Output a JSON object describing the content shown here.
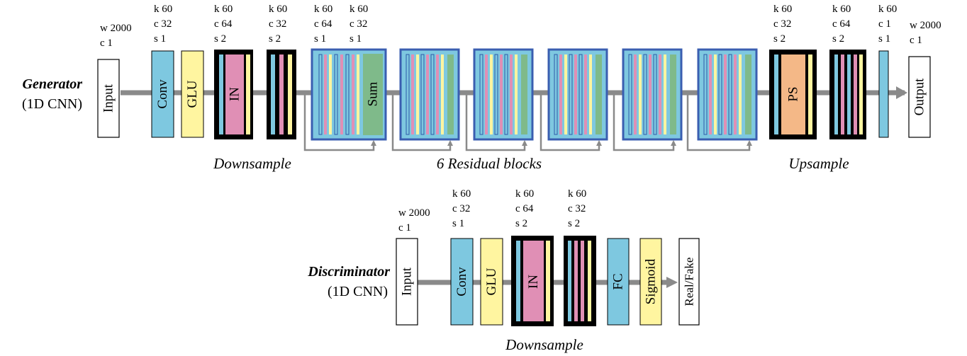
{
  "colors": {
    "conv": "#7ec8e0",
    "glu": "#fff5a0",
    "in": "#e08fb5",
    "sum": "#7fba8a",
    "ps": "#f4b887",
    "residual_border": "#3a5eb0",
    "arrow": "#8a8a8a"
  },
  "generator": {
    "title": "Generator",
    "subtitle": "(1D CNN)",
    "blocks": {
      "input": "Input",
      "conv": "Conv",
      "glu": "GLU",
      "in": "IN",
      "sum": "Sum",
      "ps": "PS",
      "output": "Output"
    },
    "params": {
      "input": [
        "w 2000",
        "c  1"
      ],
      "conv": [
        "k 60",
        "c  32",
        "s  1"
      ],
      "down1": [
        "k 60",
        "c  64",
        "s  2"
      ],
      "down2": [
        "k 60",
        "c  32",
        "s  2"
      ],
      "res_a": [
        "k 60",
        "c  64",
        "s  1"
      ],
      "res_b": [
        "k 60",
        "c  32",
        "s  1"
      ],
      "up1": [
        "k 60",
        "c  32",
        "s  2"
      ],
      "up2": [
        "k 60",
        "c  64",
        "s  2"
      ],
      "final": [
        "k 60",
        "c  1",
        "s  1"
      ],
      "output": [
        "w 2000",
        "c  1"
      ]
    },
    "captions": {
      "downsample": "Downsample",
      "residual": "6 Residual blocks",
      "upsample": "Upsample"
    }
  },
  "discriminator": {
    "title": "Discriminator",
    "subtitle": "(1D CNN)",
    "blocks": {
      "input": "Input",
      "conv": "Conv",
      "glu": "GLU",
      "in": "IN",
      "fc": "FC",
      "sigmoid": "Sigmoid",
      "output": "Real/Fake"
    },
    "params": {
      "input": [
        "w 2000",
        "c  1"
      ],
      "conv": [
        "k 60",
        "c  32",
        "s  1"
      ],
      "down1": [
        "k 60",
        "c  64",
        "s  2"
      ],
      "down2": [
        "k 60",
        "c  32",
        "s  2"
      ]
    },
    "caption": "Downsample"
  }
}
